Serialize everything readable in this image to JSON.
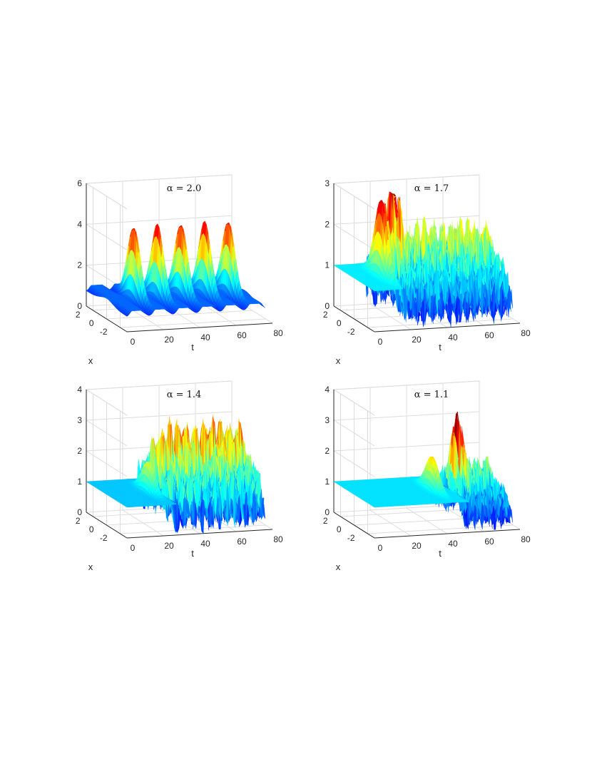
{
  "chart_data": [
    {
      "type": "surface",
      "title": "α = 2.0",
      "xlabel": "t",
      "ylabel": "x",
      "t_ticks": [
        "0",
        "20",
        "40",
        "60",
        "80"
      ],
      "x_ticks": [
        "2",
        "0",
        "-2"
      ],
      "z_ticks": [
        "0",
        "2",
        "4",
        "6"
      ],
      "tlim": [
        0,
        80
      ],
      "xlim": [
        -3,
        3
      ],
      "zlim": [
        0,
        6
      ],
      "colormap": "jet",
      "baseline": 1,
      "peaks": [
        {
          "t": 15,
          "amplitude": 4.5
        },
        {
          "t": 28,
          "amplitude": 4.5
        },
        {
          "t": 41,
          "amplitude": 4.5
        },
        {
          "t": 54,
          "amplitude": 4.5
        },
        {
          "t": 67,
          "amplitude": 4.5
        }
      ],
      "turbulent_range": null
    },
    {
      "type": "surface",
      "title": "α = 1.7",
      "xlabel": "t",
      "ylabel": "x",
      "t_ticks": [
        "0",
        "20",
        "40",
        "60",
        "80"
      ],
      "x_ticks": [
        "2",
        "0",
        "-2"
      ],
      "z_ticks": [
        "0",
        "1",
        "2",
        "3"
      ],
      "tlim": [
        0,
        80
      ],
      "xlim": [
        -3,
        3
      ],
      "zlim": [
        0,
        3
      ],
      "colormap": "jet",
      "baseline": 1,
      "peaks": [
        {
          "t": 15,
          "amplitude": 2.9
        },
        {
          "t": 22,
          "amplitude": 2.4
        }
      ],
      "turbulent_range": [
        17,
        78
      ],
      "turbulent_max": 2.3
    },
    {
      "type": "surface",
      "title": "α = 1.4",
      "xlabel": "t",
      "ylabel": "x",
      "t_ticks": [
        "0",
        "20",
        "40",
        "60",
        "80"
      ],
      "x_ticks": [
        "2",
        "0",
        "-2"
      ],
      "z_ticks": [
        "0",
        "1",
        "2",
        "3",
        "4"
      ],
      "tlim": [
        0,
        80
      ],
      "xlim": [
        -3,
        3
      ],
      "zlim": [
        0,
        4
      ],
      "colormap": "jet",
      "baseline": 1,
      "peaks": [
        {
          "t": 23,
          "amplitude": 2.0
        }
      ],
      "turbulent_range": [
        28,
        78
      ],
      "turbulent_max": 3.3
    },
    {
      "type": "surface",
      "title": "α = 1.1",
      "xlabel": "t",
      "ylabel": "x",
      "t_ticks": [
        "0",
        "20",
        "40",
        "60",
        "80"
      ],
      "x_ticks": [
        "2",
        "0",
        "-2"
      ],
      "z_ticks": [
        "0",
        "1",
        "2",
        "3",
        "4"
      ],
      "tlim": [
        0,
        80
      ],
      "xlim": [
        -3,
        3
      ],
      "zlim": [
        0,
        4
      ],
      "colormap": "jet",
      "baseline": 1,
      "peaks": [
        {
          "t": 43,
          "amplitude": 2.1
        },
        {
          "t": 57,
          "amplitude": 3.0
        }
      ],
      "turbulent_range": [
        52,
        78
      ],
      "turbulent_max": 2.0
    }
  ]
}
